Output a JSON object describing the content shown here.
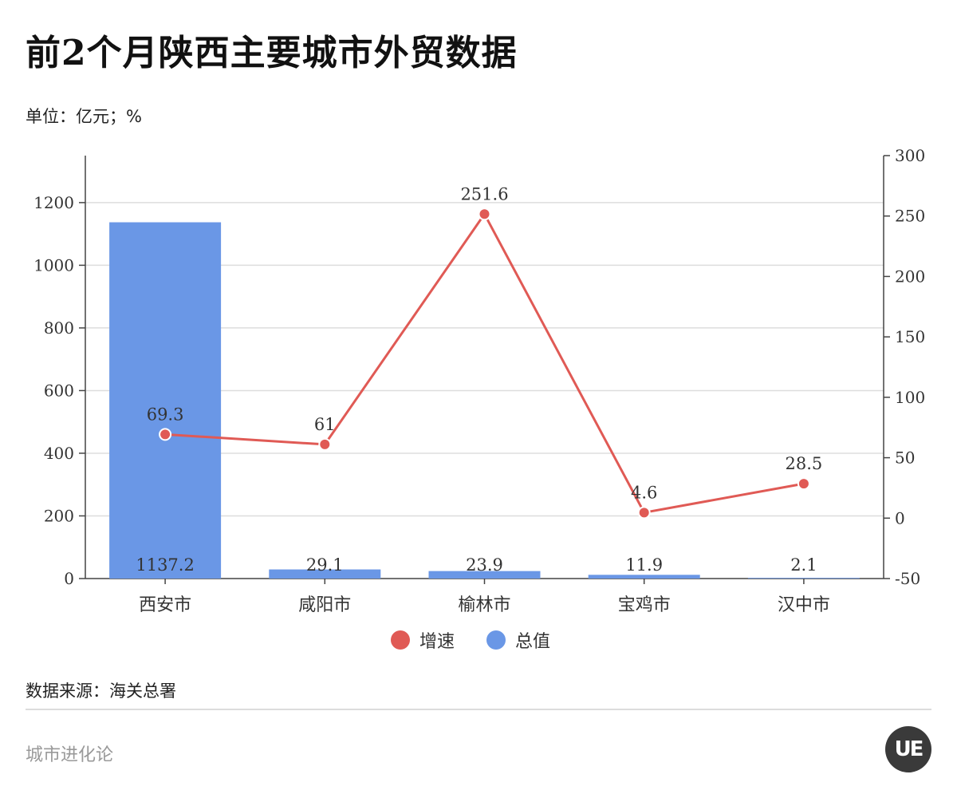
{
  "title": "前2个月陕西主要城市外贸数据",
  "unit": "单位：亿元；%",
  "source": "数据来源：海关总署",
  "brand": "城市进化论",
  "logo_text": "UE",
  "colors": {
    "bar": "#6a97e6",
    "line": "#e05a55",
    "grid": "#dddddd",
    "axis": "#444444"
  },
  "legend": [
    {
      "label": "增速",
      "color": "#e05a55"
    },
    {
      "label": "总值",
      "color": "#6a97e6"
    }
  ],
  "chart_data": {
    "type": "bar+line",
    "categories": [
      "西安市",
      "咸阳市",
      "榆林市",
      "宝鸡市",
      "汉中市"
    ],
    "series": [
      {
        "name": "总值",
        "type": "bar",
        "axis": "left",
        "values": [
          1137.2,
          29.1,
          23.9,
          11.9,
          2.1
        ],
        "labels": [
          "1137.2",
          "29.1",
          "23.9",
          "11.9",
          "2.1"
        ]
      },
      {
        "name": "增速",
        "type": "line",
        "axis": "right",
        "values": [
          69.3,
          61,
          251.6,
          4.6,
          28.5
        ],
        "labels": [
          "69.3",
          "61",
          "251.6",
          "4.6",
          "28.5"
        ]
      }
    ],
    "y_left": {
      "min": 0,
      "max": 1350,
      "ticks": [
        0,
        200,
        400,
        600,
        800,
        1000,
        1200
      ]
    },
    "y_right": {
      "min": -50,
      "max": 300,
      "ticks": [
        -50,
        0,
        50,
        100,
        150,
        200,
        250,
        300
      ]
    },
    "grid": true,
    "legend_position": "bottom"
  }
}
